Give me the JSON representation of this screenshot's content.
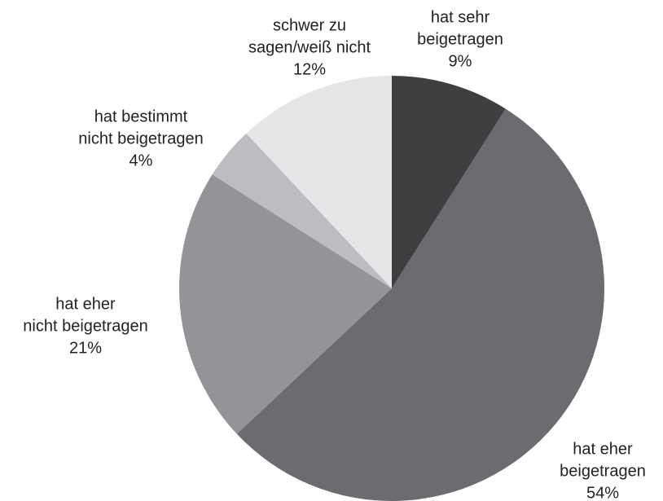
{
  "chart_data": {
    "type": "pie",
    "categories": [
      [
        "hat sehr",
        "beigetragen"
      ],
      [
        "hat eher",
        "beigetragen"
      ],
      [
        "hat eher",
        "nicht beigetragen"
      ],
      [
        "hat bestimmt",
        "nicht beigetragen"
      ],
      [
        "schwer zu",
        "sagen/weiß nicht"
      ]
    ],
    "values": [
      9,
      54,
      21,
      4,
      12
    ],
    "value_labels": [
      "9%",
      "54%",
      "21%",
      "4%",
      "12%"
    ],
    "colors": [
      "#3f3f41",
      "#6b6c70",
      "#939497",
      "#bcbdc0",
      "#e5e6e8"
    ]
  }
}
